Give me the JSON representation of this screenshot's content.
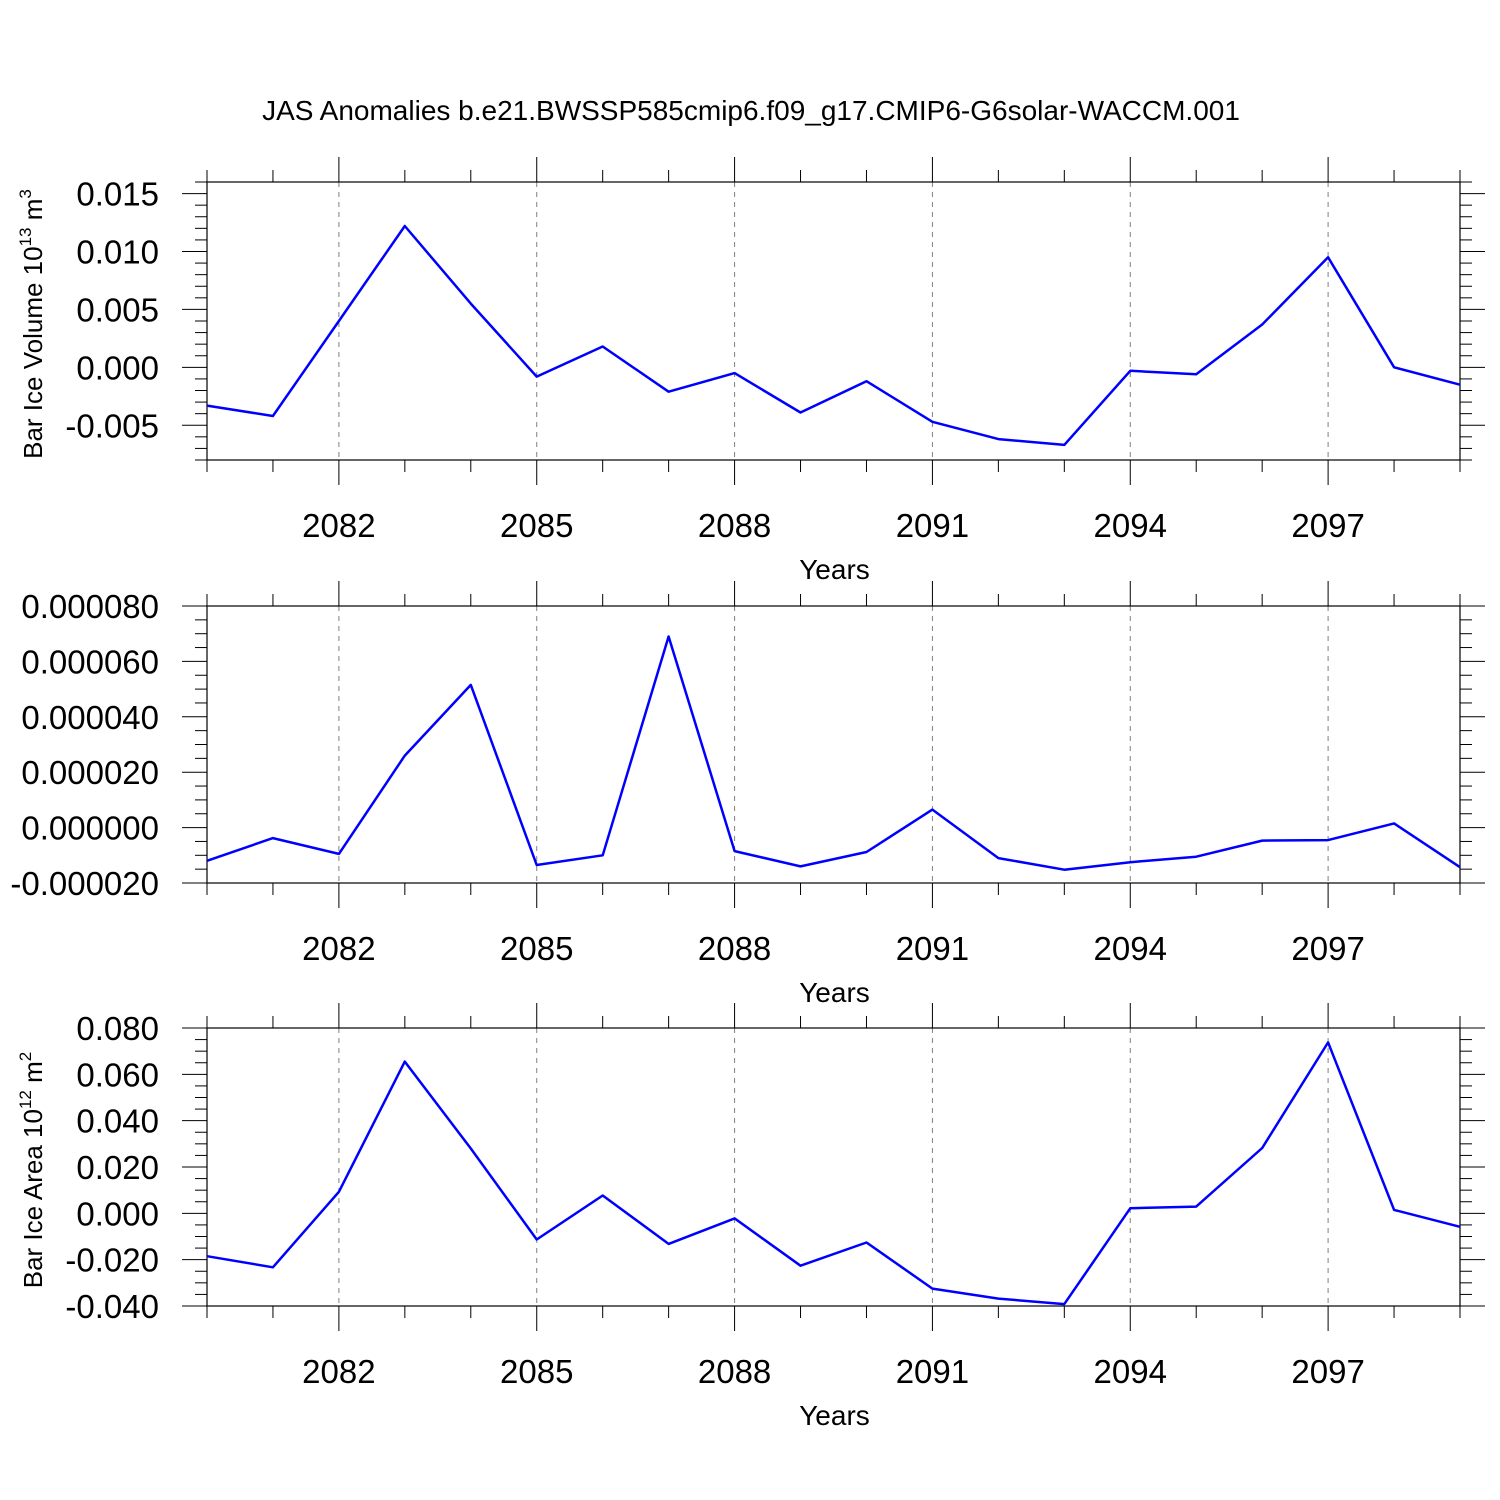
{
  "title": "JAS Anomalies b.e21.BWSSP585cmip6.f09_g17.CMIP6-G6solar-WACCM.001",
  "colors": {
    "line": "#0000ff",
    "frame": "#000000",
    "grid": "#808080"
  },
  "chart_data": [
    {
      "type": "line",
      "ylabel_main": "Bar Ice Volume 10",
      "ylabel_exp": "13",
      "ylabel_unit": " m",
      "ylabel_unit_exp": "3",
      "xlabel": "Years",
      "xlim": [
        2080,
        2099
      ],
      "ylim": [
        -0.008,
        0.016
      ],
      "x_ticks": [
        2082,
        2085,
        2088,
        2091,
        2094,
        2097
      ],
      "x_tick_labels": [
        "2082",
        "2085",
        "2088",
        "2091",
        "2094",
        "2097"
      ],
      "y_ticks": [
        -0.005,
        0.0,
        0.005,
        0.01,
        0.015
      ],
      "y_tick_labels": [
        "-0.005",
        "0.000",
        "0.005",
        "0.010",
        "0.015"
      ],
      "y_minor_step": 0.001,
      "grid": "vertical dashed at major x ticks",
      "x": [
        2080,
        2081,
        2082,
        2083,
        2084,
        2085,
        2086,
        2087,
        2088,
        2089,
        2090,
        2091,
        2092,
        2093,
        2094,
        2095,
        2096,
        2097,
        2098,
        2099
      ],
      "series": [
        {
          "values": [
            -0.0033,
            -0.0042,
            0.004,
            0.0122,
            0.0055,
            -0.0008,
            0.0018,
            -0.0021,
            -0.0005,
            -0.0039,
            -0.0012,
            -0.0047,
            -0.0062,
            -0.0067,
            -0.0003,
            -0.0006,
            0.0037,
            0.0095,
            0.0,
            -0.0015
          ]
        }
      ]
    },
    {
      "type": "line",
      "ylabel_main": "",
      "ylabel_exp": "",
      "ylabel_unit": "",
      "ylabel_unit_exp": "",
      "xlabel": "Years",
      "xlim": [
        2080,
        2099
      ],
      "ylim": [
        -2e-05,
        8e-05
      ],
      "x_ticks": [
        2082,
        2085,
        2088,
        2091,
        2094,
        2097
      ],
      "x_tick_labels": [
        "2082",
        "2085",
        "2088",
        "2091",
        "2094",
        "2097"
      ],
      "y_ticks": [
        -2e-05,
        0.0,
        2e-05,
        4e-05,
        6e-05,
        8e-05
      ],
      "y_tick_labels": [
        "-0.000020",
        "0.000000",
        "0.000020",
        "0.000040",
        "0.000060",
        "0.000080"
      ],
      "y_minor_step": 5e-06,
      "grid": "vertical dashed at major x ticks",
      "x": [
        2080,
        2081,
        2082,
        2083,
        2084,
        2085,
        2086,
        2087,
        2088,
        2089,
        2090,
        2091,
        2092,
        2093,
        2094,
        2095,
        2096,
        2097,
        2098,
        2099
      ],
      "series": [
        {
          "values": [
            -1.2e-05,
            -3.8e-06,
            -9.5e-06,
            2.6e-05,
            5.15e-05,
            -1.35e-05,
            -1e-05,
            6.9e-05,
            -8.5e-06,
            -1.4e-05,
            -8.8e-06,
            6.5e-06,
            -1.1e-05,
            -1.52e-05,
            -1.25e-05,
            -1.05e-05,
            -4.7e-06,
            -4.5e-06,
            1.5e-06,
            -1.43e-05
          ]
        }
      ]
    },
    {
      "type": "line",
      "ylabel_main": "Bar Ice Area 10",
      "ylabel_exp": "12",
      "ylabel_unit": " m",
      "ylabel_unit_exp": "2",
      "xlabel": "Years",
      "xlim": [
        2080,
        2099
      ],
      "ylim": [
        -0.04,
        0.08
      ],
      "x_ticks": [
        2082,
        2085,
        2088,
        2091,
        2094,
        2097
      ],
      "x_tick_labels": [
        "2082",
        "2085",
        "2088",
        "2091",
        "2094",
        "2097"
      ],
      "y_ticks": [
        -0.04,
        -0.02,
        0.0,
        0.02,
        0.04,
        0.06,
        0.08
      ],
      "y_tick_labels": [
        "-0.040",
        "-0.020",
        "0.000",
        "0.020",
        "0.040",
        "0.060",
        "0.080"
      ],
      "y_minor_step": 0.005,
      "grid": "vertical dashed at major x ticks",
      "x": [
        2080,
        2081,
        2082,
        2083,
        2084,
        2085,
        2086,
        2087,
        2088,
        2089,
        2090,
        2091,
        2092,
        2093,
        2094,
        2095,
        2096,
        2097,
        2098,
        2099
      ],
      "series": [
        {
          "values": [
            -0.0185,
            -0.0233,
            0.0093,
            0.0655,
            0.028,
            -0.0113,
            0.0077,
            -0.0132,
            -0.0022,
            -0.0226,
            -0.0126,
            -0.0325,
            -0.0368,
            -0.0392,
            0.0022,
            0.0029,
            0.0282,
            0.0738,
            0.0015,
            -0.0058
          ]
        }
      ]
    }
  ]
}
